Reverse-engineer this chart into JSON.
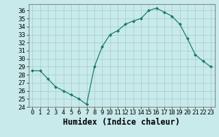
{
  "x": [
    0,
    1,
    2,
    3,
    4,
    5,
    6,
    7,
    8,
    9,
    10,
    11,
    12,
    13,
    14,
    15,
    16,
    17,
    18,
    19,
    20,
    21,
    22,
    23
  ],
  "y": [
    28.5,
    28.5,
    27.5,
    26.5,
    26.0,
    25.5,
    25.0,
    24.3,
    29.0,
    31.5,
    33.0,
    33.5,
    34.3,
    34.7,
    35.0,
    36.0,
    36.3,
    35.8,
    35.3,
    34.3,
    32.5,
    30.5,
    29.7,
    29.0
  ],
  "line_color": "#1a7a6a",
  "marker": "D",
  "marker_size": 2.0,
  "bg_color": "#c8eaea",
  "grid_color": "#aacfcf",
  "xlabel": "Humidex (Indice chaleur)",
  "xlim": [
    -0.5,
    23.5
  ],
  "ylim": [
    24,
    36.8
  ],
  "yticks": [
    24,
    25,
    26,
    27,
    28,
    29,
    30,
    31,
    32,
    33,
    34,
    35,
    36
  ],
  "tick_fontsize": 6.5,
  "xlabel_fontsize": 8.5,
  "spine_color": "#888888"
}
